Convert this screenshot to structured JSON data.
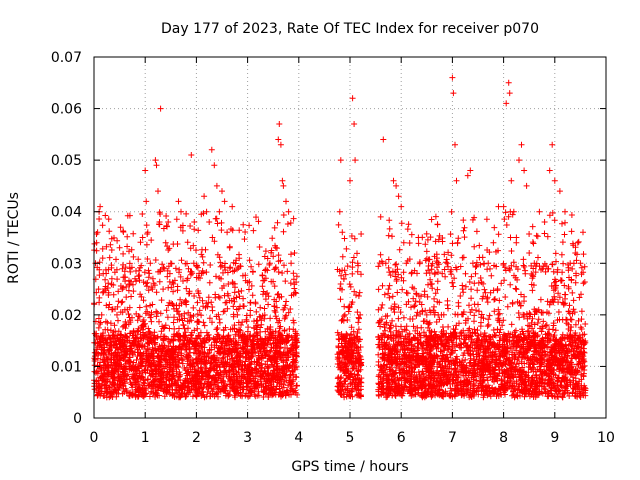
{
  "chart_data": {
    "type": "scatter",
    "title": "Day 177 of 2023, Rate Of TEC Index for receiver p070",
    "xlabel": "GPS time / hours",
    "ylabel": "ROTI / TECUs",
    "xlim": [
      0,
      10
    ],
    "ylim": [
      0,
      0.07
    ],
    "x_ticks": [
      0,
      1,
      2,
      3,
      4,
      5,
      6,
      7,
      8,
      9,
      10
    ],
    "x_tick_labels": [
      "0",
      "1",
      "2",
      "3",
      "4",
      "5",
      "6",
      "7",
      "8",
      "9",
      "10"
    ],
    "y_ticks": [
      0,
      0.01,
      0.02,
      0.03,
      0.04,
      0.05,
      0.06,
      0.07
    ],
    "y_tick_labels": [
      "0",
      "0.01",
      "0.02",
      "0.03",
      "0.04",
      "0.05",
      "0.06",
      "0.07"
    ],
    "grid": true,
    "marker": "+",
    "color": "#ff0000",
    "data_coverage_hours": [
      [
        0.0,
        3.97
      ],
      [
        4.75,
        5.22
      ],
      [
        5.55,
        9.6
      ]
    ],
    "series": [
      {
        "name": "ROTI",
        "points": [
          [
            0.02,
            0.012
          ],
          [
            0.03,
            0.03
          ],
          [
            0.05,
            0.034
          ],
          [
            0.07,
            0.036
          ],
          [
            0.09,
            0.025
          ],
          [
            0.1,
            0.04
          ],
          [
            0.12,
            0.041
          ],
          [
            0.15,
            0.02
          ],
          [
            0.18,
            0.028
          ],
          [
            0.22,
            0.015
          ],
          [
            0.25,
            0.004
          ],
          [
            0.3,
            0.022
          ],
          [
            0.35,
            0.027
          ],
          [
            0.4,
            0.018
          ],
          [
            0.45,
            0.02
          ],
          [
            0.5,
            0.033
          ],
          [
            0.52,
            0.037
          ],
          [
            0.55,
            0.025
          ],
          [
            0.6,
            0.009
          ],
          [
            0.65,
            0.021
          ],
          [
            0.7,
            0.029
          ],
          [
            0.75,
            0.016
          ],
          [
            0.8,
            0.027
          ],
          [
            0.85,
            0.012
          ],
          [
            0.9,
            0.024
          ],
          [
            0.95,
            0.035
          ],
          [
            1.0,
            0.048
          ],
          [
            1.02,
            0.042
          ],
          [
            1.05,
            0.036
          ],
          [
            1.1,
            0.03
          ],
          [
            1.15,
            0.027
          ],
          [
            1.2,
            0.05
          ],
          [
            1.22,
            0.049
          ],
          [
            1.25,
            0.044
          ],
          [
            1.28,
            0.038
          ],
          [
            1.3,
            0.06
          ],
          [
            1.35,
            0.025
          ],
          [
            1.4,
            0.034
          ],
          [
            1.45,
            0.038
          ],
          [
            1.5,
            0.03
          ],
          [
            1.55,
            0.026
          ],
          [
            1.6,
            0.029
          ],
          [
            1.65,
            0.042
          ],
          [
            1.7,
            0.04
          ],
          [
            1.75,
            0.018
          ],
          [
            1.8,
            0.022
          ],
          [
            1.85,
            0.012
          ],
          [
            1.9,
            0.051
          ],
          [
            1.95,
            0.03
          ],
          [
            2.0,
            0.014
          ],
          [
            2.1,
            0.028
          ],
          [
            2.15,
            0.043
          ],
          [
            2.2,
            0.04
          ],
          [
            2.25,
            0.038
          ],
          [
            2.3,
            0.052
          ],
          [
            2.35,
            0.049
          ],
          [
            2.4,
            0.045
          ],
          [
            2.45,
            0.04
          ],
          [
            2.5,
            0.044
          ],
          [
            2.55,
            0.042
          ],
          [
            2.6,
            0.036
          ],
          [
            2.65,
            0.033
          ],
          [
            2.7,
            0.041
          ],
          [
            2.75,
            0.026
          ],
          [
            2.8,
            0.02
          ],
          [
            2.9,
            0.016
          ],
          [
            3.0,
            0.014
          ],
          [
            3.1,
            0.012
          ],
          [
            3.2,
            0.018
          ],
          [
            3.3,
            0.024
          ],
          [
            3.4,
            0.022
          ],
          [
            3.5,
            0.016
          ],
          [
            3.55,
            0.033
          ],
          [
            3.6,
            0.054
          ],
          [
            3.62,
            0.057
          ],
          [
            3.65,
            0.053
          ],
          [
            3.68,
            0.046
          ],
          [
            3.7,
            0.045
          ],
          [
            3.75,
            0.042
          ],
          [
            3.8,
            0.04
          ],
          [
            3.85,
            0.03
          ],
          [
            3.9,
            0.024
          ],
          [
            3.95,
            0.012
          ],
          [
            4.8,
            0.04
          ],
          [
            4.82,
            0.05
          ],
          [
            4.85,
            0.036
          ],
          [
            4.88,
            0.027
          ],
          [
            4.9,
            0.02
          ],
          [
            4.95,
            0.012
          ],
          [
            5.0,
            0.046
          ],
          [
            5.05,
            0.062
          ],
          [
            5.08,
            0.057
          ],
          [
            5.1,
            0.05
          ],
          [
            5.15,
            0.03
          ],
          [
            5.2,
            0.02
          ],
          [
            5.6,
            0.039
          ],
          [
            5.65,
            0.054
          ],
          [
            5.7,
            0.03
          ],
          [
            5.75,
            0.025
          ],
          [
            5.8,
            0.018
          ],
          [
            5.85,
            0.046
          ],
          [
            5.9,
            0.045
          ],
          [
            5.95,
            0.043
          ],
          [
            6.0,
            0.041
          ],
          [
            6.05,
            0.034
          ],
          [
            6.1,
            0.03
          ],
          [
            6.2,
            0.028
          ],
          [
            6.3,
            0.024
          ],
          [
            6.4,
            0.022
          ],
          [
            6.5,
            0.02
          ],
          [
            6.6,
            0.026
          ],
          [
            6.7,
            0.031
          ],
          [
            6.8,
            0.028
          ],
          [
            6.9,
            0.03
          ],
          [
            7.0,
            0.066
          ],
          [
            7.02,
            0.063
          ],
          [
            7.05,
            0.053
          ],
          [
            7.08,
            0.046
          ],
          [
            7.1,
            0.034
          ],
          [
            7.2,
            0.025
          ],
          [
            7.3,
            0.047
          ],
          [
            7.35,
            0.048
          ],
          [
            7.4,
            0.03
          ],
          [
            7.5,
            0.022
          ],
          [
            7.6,
            0.026
          ],
          [
            7.7,
            0.03
          ],
          [
            7.8,
            0.034
          ],
          [
            7.9,
            0.041
          ],
          [
            8.0,
            0.041
          ],
          [
            8.05,
            0.061
          ],
          [
            8.1,
            0.065
          ],
          [
            8.12,
            0.063
          ],
          [
            8.15,
            0.046
          ],
          [
            8.2,
            0.04
          ],
          [
            8.25,
            0.035
          ],
          [
            8.3,
            0.05
          ],
          [
            8.35,
            0.053
          ],
          [
            8.4,
            0.048
          ],
          [
            8.45,
            0.045
          ],
          [
            8.5,
            0.032
          ],
          [
            8.6,
            0.03
          ],
          [
            8.7,
            0.04
          ],
          [
            8.8,
            0.038
          ],
          [
            8.9,
            0.048
          ],
          [
            8.95,
            0.053
          ],
          [
            9.0,
            0.046
          ],
          [
            9.1,
            0.044
          ],
          [
            9.2,
            0.04
          ],
          [
            9.3,
            0.03
          ],
          [
            9.4,
            0.032
          ],
          [
            9.45,
            0.034
          ],
          [
            9.5,
            0.03
          ],
          [
            9.55,
            0.036
          ]
        ],
        "background_band": [
          0.004,
          0.016
        ],
        "approx_point_count": 6000
      }
    ]
  }
}
